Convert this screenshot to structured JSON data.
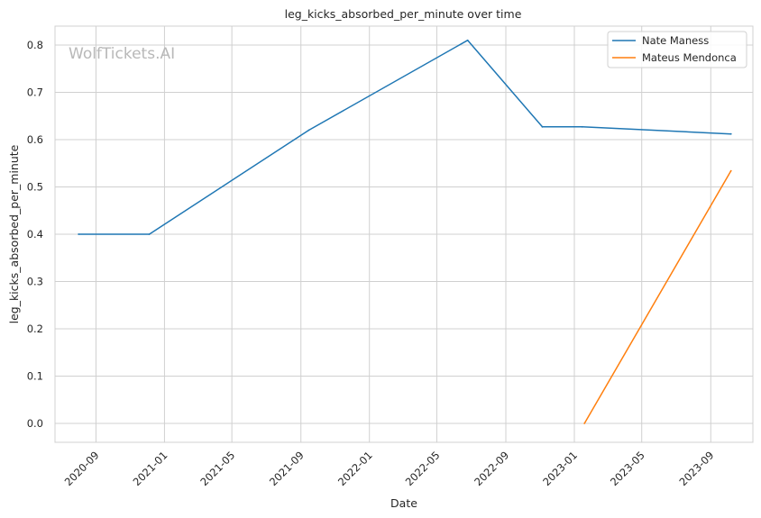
{
  "chart_data": {
    "type": "line",
    "title": "leg_kicks_absorbed_per_minute over time",
    "xlabel": "Date",
    "ylabel": "leg_kicks_absorbed_per_minute",
    "watermark": "WolfTickets.AI",
    "x_ticks": [
      "2020-09",
      "2021-01",
      "2021-05",
      "2021-09",
      "2022-01",
      "2022-05",
      "2022-09",
      "2023-01",
      "2023-05",
      "2023-09"
    ],
    "y_ticks": [
      "0.0",
      "0.1",
      "0.2",
      "0.3",
      "0.4",
      "0.5",
      "0.6",
      "0.7",
      "0.8"
    ],
    "xlim": [
      "2020-06-20",
      "2023-11-15"
    ],
    "ylim": [
      -0.04,
      0.84
    ],
    "grid": true,
    "legend_position": "top-right",
    "series": [
      {
        "name": "Nate Maness",
        "color": "#1f77b4",
        "points": [
          {
            "x": "2020-08-01",
            "y": 0.4
          },
          {
            "x": "2020-12-05",
            "y": 0.4
          },
          {
            "x": "2021-09-15",
            "y": 0.62
          },
          {
            "x": "2022-06-25",
            "y": 0.81
          },
          {
            "x": "2022-11-05",
            "y": 0.627
          },
          {
            "x": "2023-01-15",
            "y": 0.627
          },
          {
            "x": "2023-10-07",
            "y": 0.612
          }
        ]
      },
      {
        "name": "Mateus Mendonca",
        "color": "#ff7f0e",
        "points": [
          {
            "x": "2023-01-19",
            "y": 0.0
          },
          {
            "x": "2023-10-07",
            "y": 0.534
          }
        ]
      }
    ]
  }
}
